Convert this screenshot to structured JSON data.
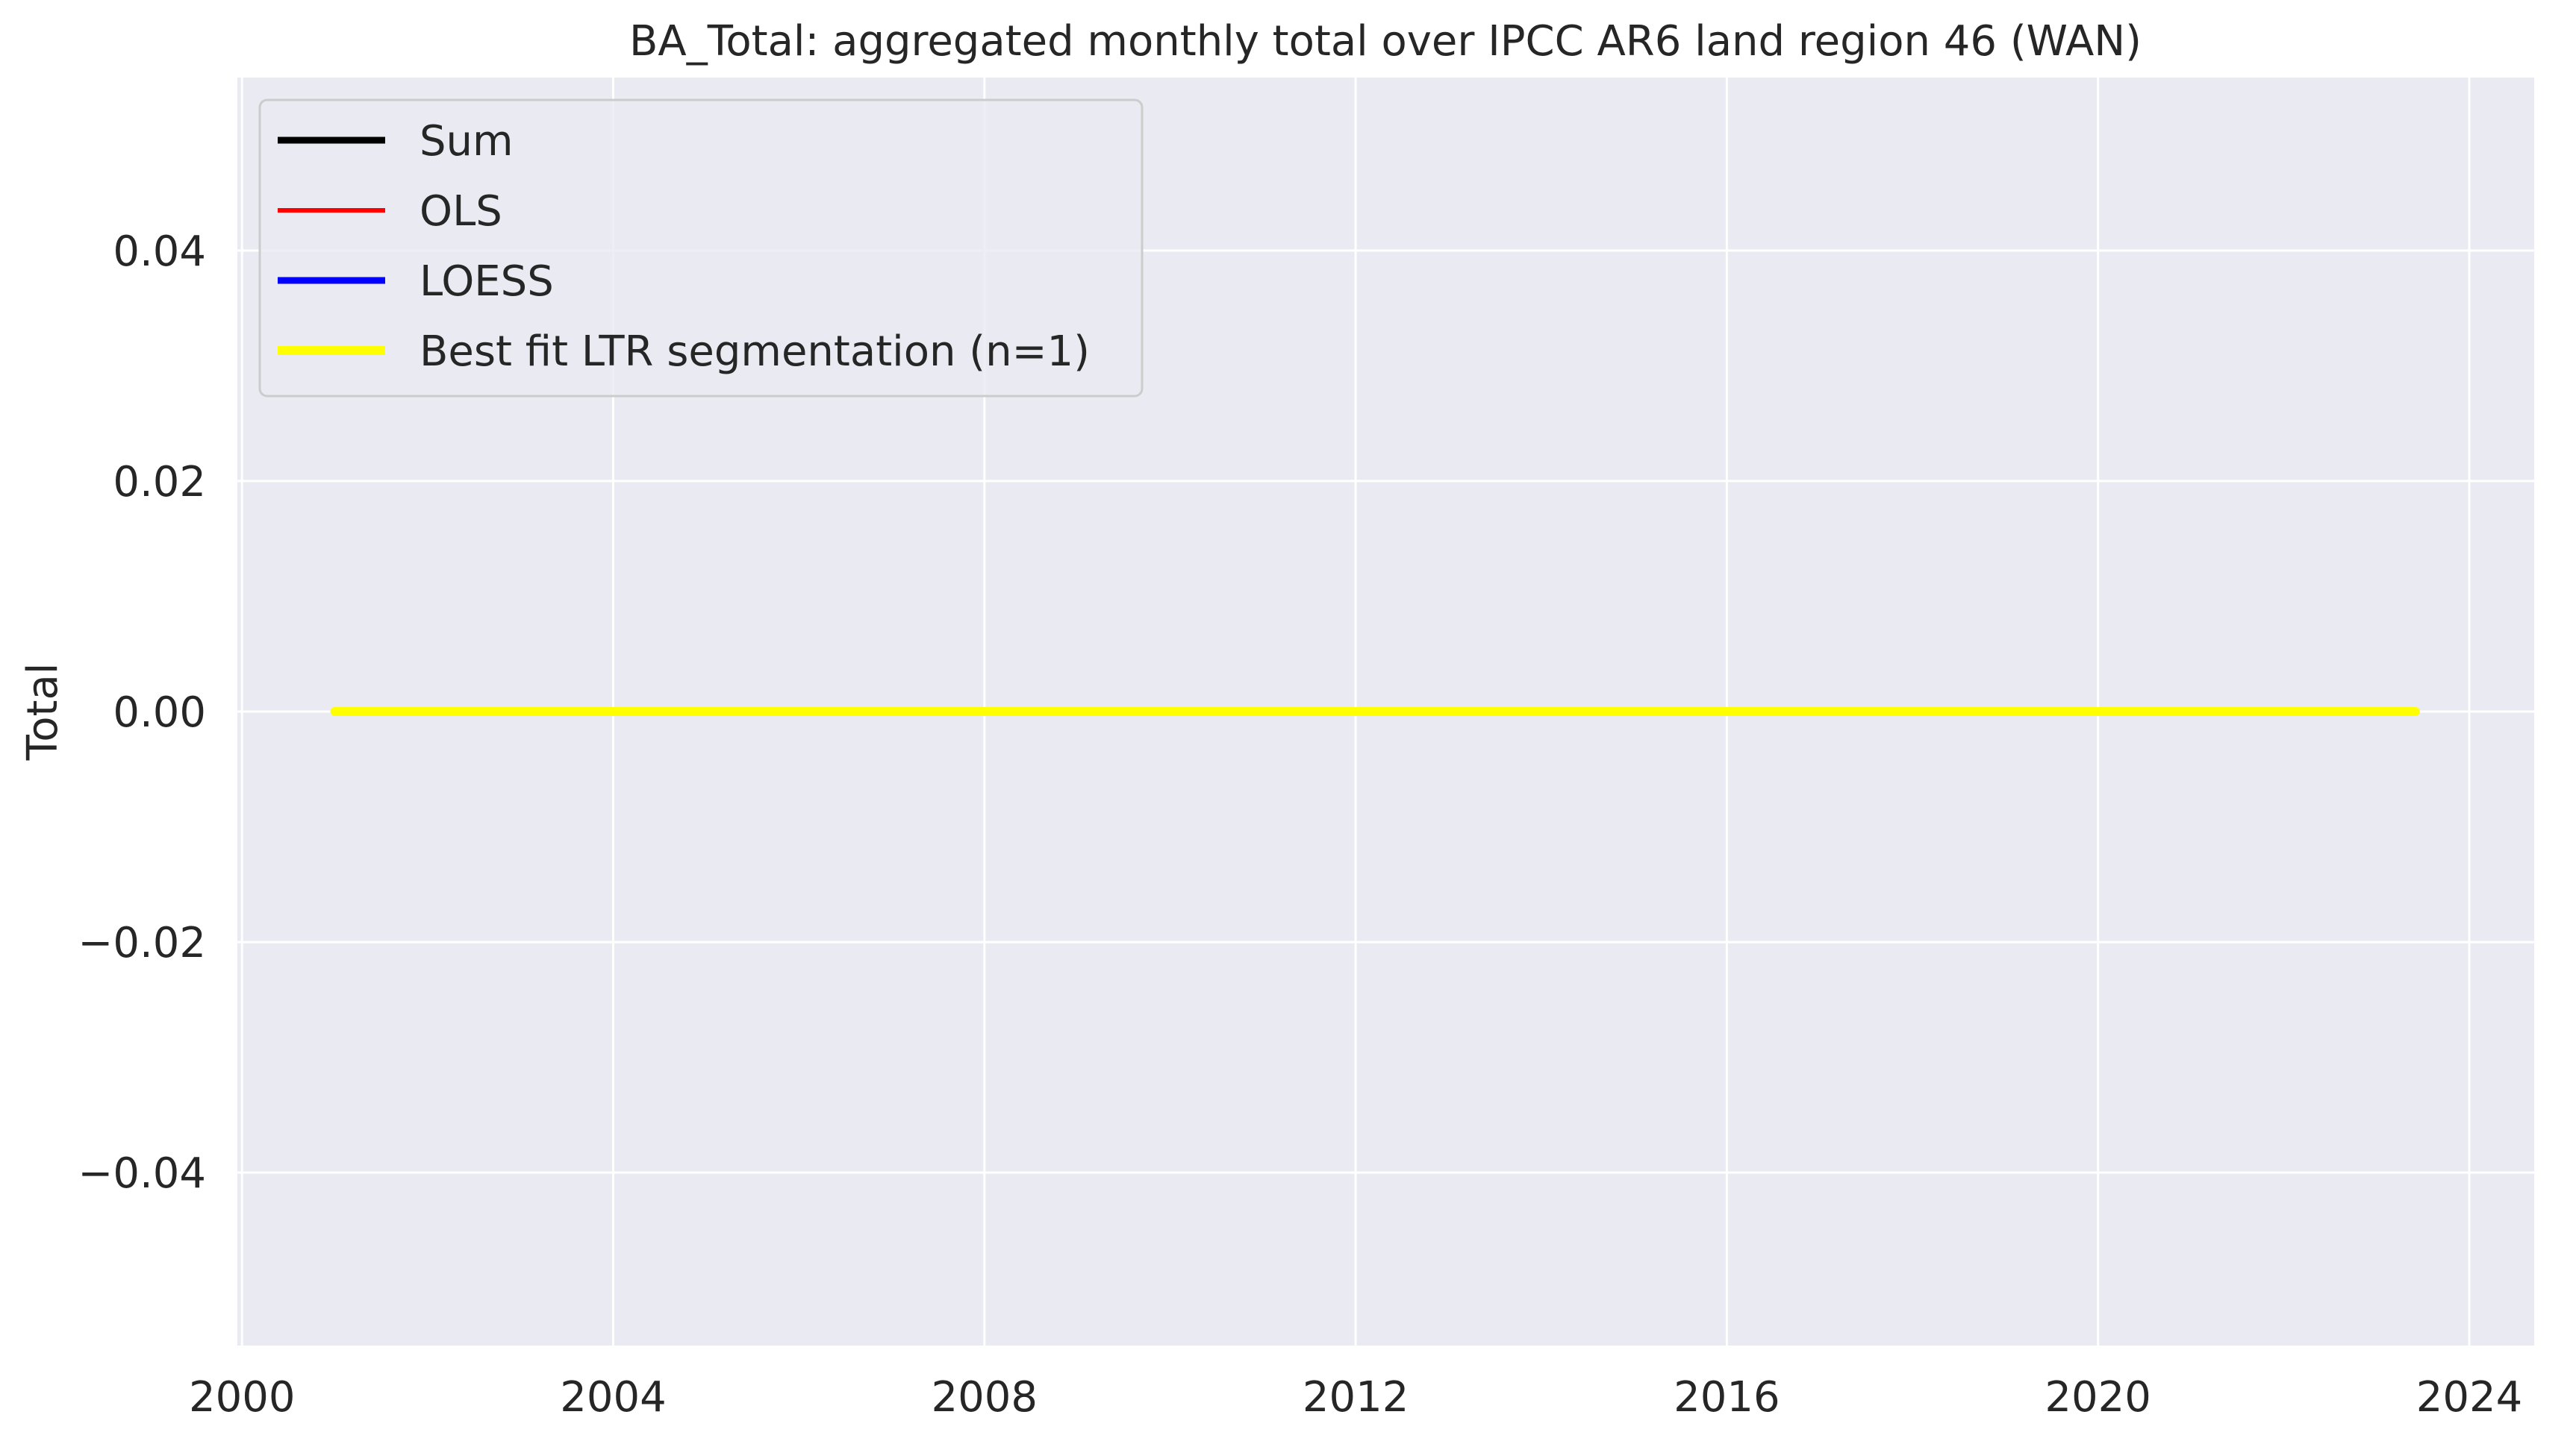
{
  "chart_data": {
    "type": "line",
    "title": "BA_Total: aggregated monthly total over IPCC AR6 land region 46 (WAN)",
    "xlabel": "",
    "ylabel": "Total",
    "xlim": [
      1999.95,
      2024.7
    ],
    "ylim": [
      -0.055,
      0.055
    ],
    "x_ticks": [
      2000,
      2004,
      2008,
      2012,
      2016,
      2020,
      2024
    ],
    "x_tick_labels": [
      "2000",
      "2004",
      "2008",
      "2012",
      "2016",
      "2020",
      "2024"
    ],
    "y_ticks": [
      -0.04,
      -0.02,
      0.0,
      0.02,
      0.04
    ],
    "y_tick_labels": [
      "−0.04",
      "−0.02",
      "0.00",
      "0.02",
      "0.04"
    ],
    "grid": true,
    "legend_placement": "upper-left",
    "background_color": "#eaeaf2",
    "grid_color": "#ffffff",
    "series": [
      {
        "name": "Sum",
        "color": "#000000",
        "x": [
          2001.0,
          2023.42
        ],
        "y": [
          0,
          0
        ]
      },
      {
        "name": "OLS",
        "color": "#ff0000",
        "x": [
          2001.0,
          2023.42
        ],
        "y": [
          0,
          0
        ]
      },
      {
        "name": "LOESS",
        "color": "#0000ff",
        "x": [
          2001.0,
          2023.42
        ],
        "y": [
          0,
          0
        ]
      },
      {
        "name": "Best fit LTR segmentation (n=1)",
        "color": "#ffff00",
        "x": [
          2001.0,
          2023.42
        ],
        "y": [
          0,
          0
        ]
      }
    ]
  }
}
